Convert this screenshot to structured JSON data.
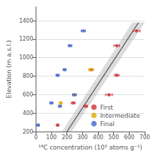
{
  "chart_data": {
    "type": "scatter",
    "xlabel": "¹⁴C concentration (10³ atoms g⁻¹)",
    "ylabel": "Elevation (m a.s.l.)",
    "xlim": [
      0,
      700
    ],
    "ylim": [
      200,
      1550
    ],
    "xticks": [
      0,
      100,
      200,
      300,
      400,
      500,
      600,
      700
    ],
    "yticks": [
      200,
      400,
      600,
      800,
      1000,
      1200,
      1400
    ],
    "grid": true,
    "legend": "lower right",
    "series": [
      {
        "name": "First",
        "type": "scatter",
        "color": "#cc3333",
        "marker": "o",
        "x": [
          140,
          240,
          320,
          355,
          470,
          520,
          520,
          648
        ],
        "y": [
          270,
          510,
          475,
          870,
          598,
          810,
          1130,
          1290
        ],
        "xerr": [
          8,
          12,
          12,
          14,
          22,
          14,
          18,
          22
        ]
      },
      {
        "name": "Intermediate",
        "type": "scatter",
        "color": "#ddaa00",
        "marker": "o",
        "x": [
          160,
          248,
          355
        ],
        "y": [
          510,
          598,
          870
        ],
        "xerr": [
          10,
          12,
          14
        ]
      },
      {
        "name": "Final",
        "type": "scatter",
        "color": "#4466cc",
        "marker": "o",
        "x": [
          15,
          100,
          140,
          155,
          185,
          220,
          248,
          305
        ],
        "y": [
          270,
          510,
          810,
          475,
          870,
          1130,
          598,
          1290
        ],
        "xerr": [
          8,
          10,
          10,
          10,
          10,
          12,
          12,
          14
        ]
      },
      {
        "type": "line",
        "color": "#444444",
        "x": [
          200,
          660
        ],
        "y": [
          200,
          1380
        ]
      },
      {
        "type": "band",
        "color": "gray",
        "x_left": [
          168,
          620
        ],
        "x_right": [
          230,
          700
        ],
        "y": [
          200,
          1380
        ]
      }
    ]
  }
}
